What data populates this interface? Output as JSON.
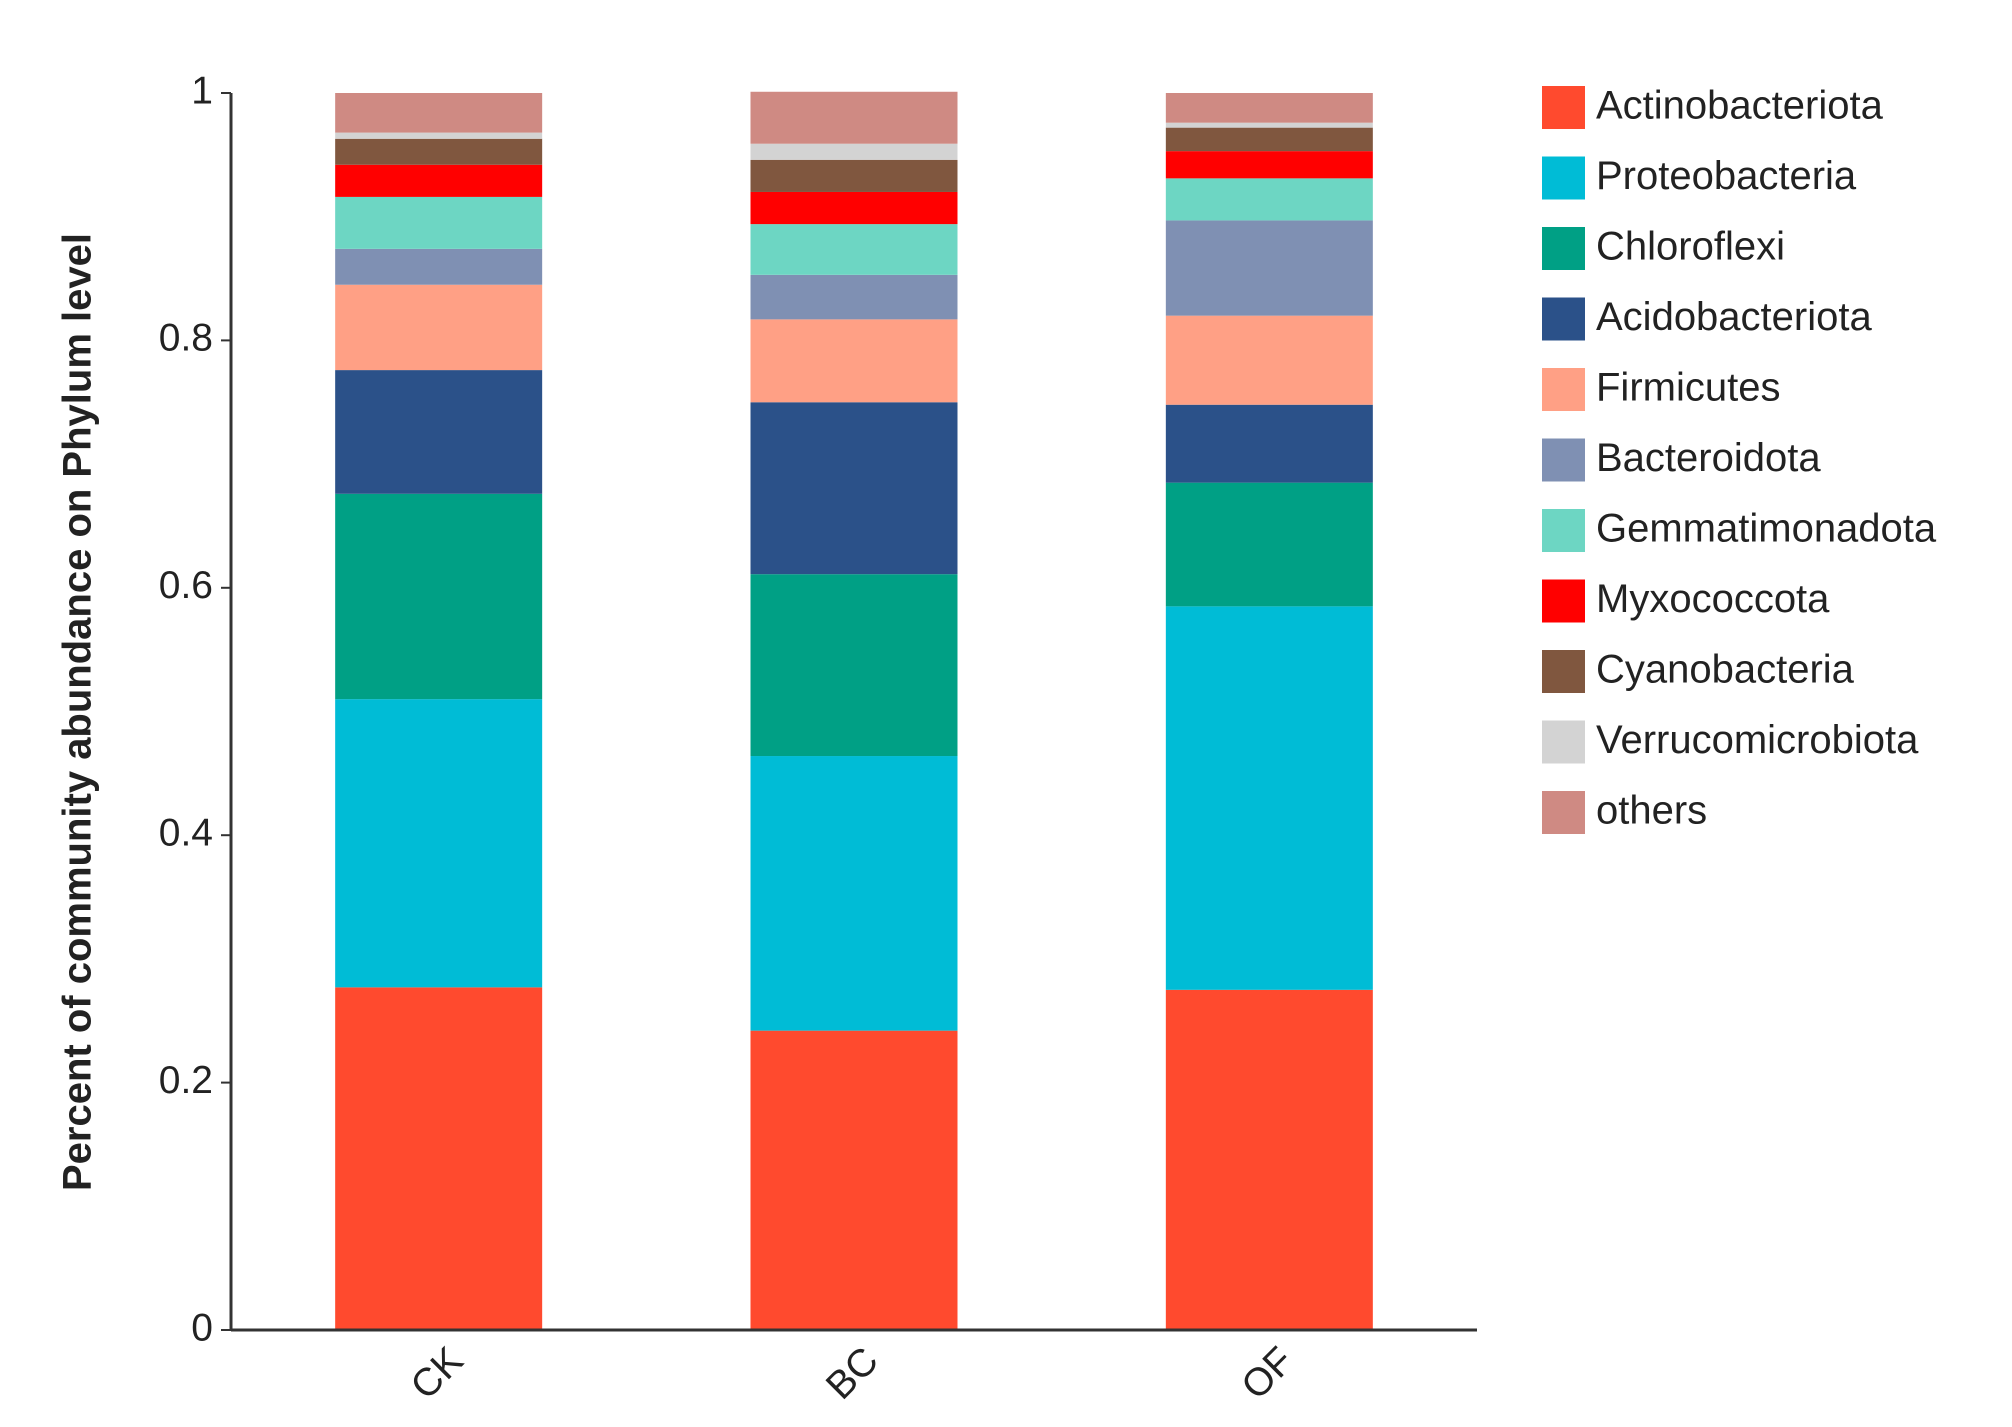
{
  "chart_data": {
    "type": "stacked_bar",
    "y_label": "Percent of community abundance on Phylum level",
    "categories": [
      "CK",
      "BC",
      "OF"
    ],
    "ylim": [
      0,
      1
    ],
    "yticks": [
      0,
      0.2,
      0.4,
      0.6,
      0.8,
      1
    ],
    "series": [
      {
        "name": "Actinobacteriota",
        "color": "#ff4a2e",
        "values": [
          0.277,
          0.242,
          0.275
        ]
      },
      {
        "name": "Proteobacteria",
        "color": "#00bcd6",
        "values": [
          0.233,
          0.222,
          0.31
        ]
      },
      {
        "name": "Chloroflexi",
        "color": "#00a085",
        "values": [
          0.166,
          0.147,
          0.1
        ]
      },
      {
        "name": "Acidobacteriota",
        "color": "#2b5189",
        "values": [
          0.1,
          0.139,
          0.063
        ]
      },
      {
        "name": "Firmicutes",
        "color": "#ffa085",
        "values": [
          0.069,
          0.067,
          0.072
        ]
      },
      {
        "name": "Bacteroidota",
        "color": "#7f90b3",
        "values": [
          0.029,
          0.036,
          0.077
        ]
      },
      {
        "name": "Gemmatimonadota",
        "color": "#6dd6c3",
        "values": [
          0.042,
          0.041,
          0.034
        ]
      },
      {
        "name": "Myxococcota",
        "color": "#ff0000",
        "values": [
          0.026,
          0.026,
          0.022
        ]
      },
      {
        "name": "Cyanobacteria",
        "color": "#80573f",
        "values": [
          0.021,
          0.026,
          0.019
        ]
      },
      {
        "name": "Verrucomicrobiota",
        "color": "#d3d3d3",
        "values": [
          0.005,
          0.013,
          0.004
        ]
      },
      {
        "name": "others",
        "color": "#cf8a83",
        "values": [
          0.032,
          0.042,
          0.024
        ]
      }
    ]
  }
}
